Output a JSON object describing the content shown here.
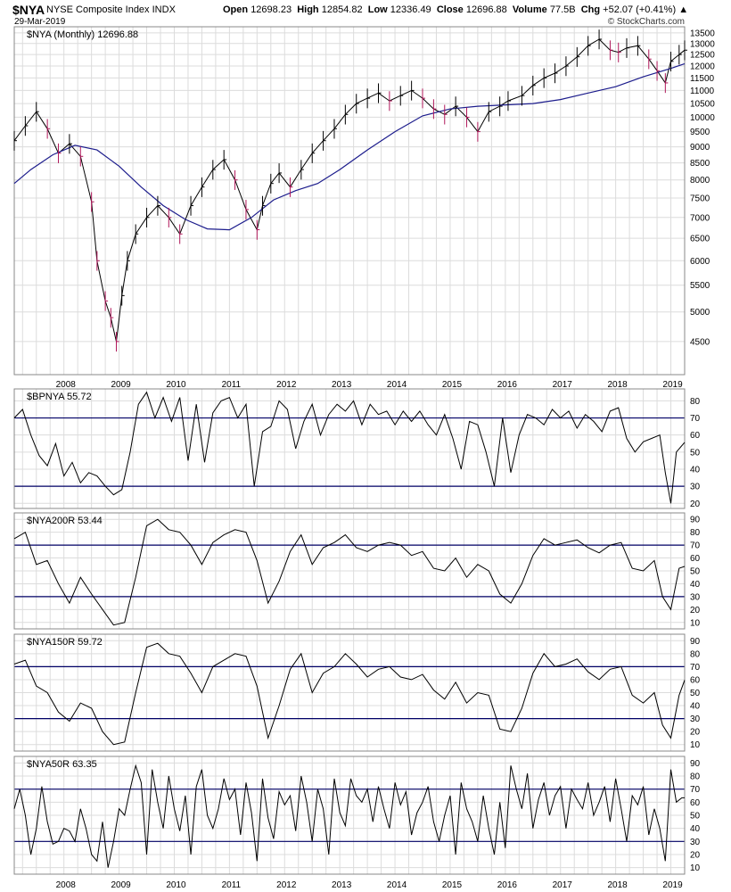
{
  "header": {
    "symbol": "$NYA",
    "name": "NYSE Composite Index",
    "exchange": "INDX",
    "date": "29-Mar-2019",
    "open_label": "Open",
    "open": "12698.23",
    "high_label": "High",
    "high": "12854.82",
    "low_label": "Low",
    "low": "12336.49",
    "close_label": "Close",
    "close": "12696.88",
    "volume_label": "Volume",
    "volume": "77.5B",
    "chg_label": "Chg",
    "chg": "+52.07 (+0.41%)",
    "brand": "© StockCharts.com"
  },
  "colors": {
    "price": "#000000",
    "down_bar": "#b0175a",
    "ma": "#1c1c8c",
    "ref_line": "#000066",
    "grid": "#dcdcdc"
  },
  "chart_data": [
    {
      "type": "line",
      "legend": "$NYA (Monthly) 12696.88",
      "scale": "log",
      "ylim": [
        4000,
        13800
      ],
      "x_range": [
        2007.1,
        2019.25
      ],
      "yticks": [
        4500,
        5000,
        5500,
        6000,
        6500,
        7000,
        7500,
        8000,
        8500,
        9000,
        9500,
        10000,
        10500,
        11000,
        11500,
        12000,
        12500,
        13000,
        13500
      ],
      "xticks": [
        2008,
        2009,
        2010,
        2011,
        2012,
        2013,
        2014,
        2015,
        2016,
        2017,
        2018,
        2019
      ],
      "series": [
        {
          "name": "price",
          "x": [
            2007.1,
            2007.3,
            2007.5,
            2007.7,
            2007.9,
            2008.1,
            2008.3,
            2008.5,
            2008.6,
            2008.75,
            2008.85,
            2008.95,
            2009.05,
            2009.15,
            2009.3,
            2009.5,
            2009.7,
            2009.9,
            2010.1,
            2010.3,
            2010.5,
            2010.7,
            2010.9,
            2011.1,
            2011.3,
            2011.5,
            2011.6,
            2011.75,
            2011.9,
            2012.1,
            2012.3,
            2012.5,
            2012.7,
            2012.9,
            2013.1,
            2013.3,
            2013.5,
            2013.7,
            2013.9,
            2014.1,
            2014.3,
            2014.5,
            2014.7,
            2014.9,
            2015.1,
            2015.3,
            2015.5,
            2015.7,
            2015.9,
            2016.05,
            2016.3,
            2016.5,
            2016.7,
            2016.9,
            2017.1,
            2017.3,
            2017.5,
            2017.7,
            2017.9,
            2018.05,
            2018.2,
            2018.4,
            2018.6,
            2018.75,
            2018.9,
            2019.0,
            2019.15,
            2019.25
          ],
          "values": [
            9200,
            9700,
            10200,
            9600,
            8800,
            9100,
            8700,
            7400,
            6000,
            5200,
            4900,
            4500,
            5300,
            6000,
            6600,
            7000,
            7300,
            7000,
            6600,
            7300,
            7800,
            8300,
            8600,
            8000,
            7200,
            6700,
            7300,
            7900,
            8200,
            7800,
            8300,
            8800,
            9200,
            9600,
            10100,
            10500,
            10700,
            10900,
            10600,
            10800,
            11000,
            10700,
            10300,
            10100,
            10400,
            10000,
            9500,
            10200,
            10400,
            10600,
            10800,
            11200,
            11500,
            11700,
            12000,
            12400,
            12900,
            13200,
            12700,
            12600,
            12800,
            12900,
            12300,
            11800,
            11300,
            12200,
            12500,
            12697
          ]
        },
        {
          "name": "MA",
          "x": [
            2007.1,
            2007.4,
            2007.8,
            2008.2,
            2008.6,
            2009.0,
            2009.4,
            2009.8,
            2010.2,
            2010.6,
            2011.0,
            2011.4,
            2011.8,
            2012.2,
            2012.6,
            2013.0,
            2013.5,
            2014.0,
            2014.5,
            2015.0,
            2015.5,
            2016.0,
            2016.5,
            2017.0,
            2017.5,
            2018.0,
            2018.5,
            2019.0,
            2019.25
          ],
          "values": [
            7900,
            8300,
            8750,
            9050,
            8900,
            8400,
            7800,
            7300,
            6950,
            6720,
            6700,
            7000,
            7450,
            7700,
            7900,
            8300,
            8900,
            9500,
            10050,
            10300,
            10400,
            10450,
            10500,
            10650,
            10900,
            11150,
            11550,
            11900,
            12100
          ]
        }
      ]
    },
    {
      "type": "line",
      "legend": "$BPNYA 55.72",
      "ylim": [
        17,
        87
      ],
      "yticks": [
        20,
        30,
        40,
        50,
        60,
        70,
        80
      ],
      "reference_lines": [
        70,
        30
      ],
      "series": [
        {
          "name": "$BPNYA",
          "x": [
            2007.1,
            2007.25,
            2007.4,
            2007.55,
            2007.7,
            2007.85,
            2008.0,
            2008.15,
            2008.3,
            2008.45,
            2008.6,
            2008.75,
            2008.9,
            2009.05,
            2009.2,
            2009.35,
            2009.5,
            2009.65,
            2009.8,
            2009.95,
            2010.1,
            2010.25,
            2010.4,
            2010.55,
            2010.7,
            2010.85,
            2011.0,
            2011.15,
            2011.3,
            2011.45,
            2011.6,
            2011.75,
            2011.9,
            2012.05,
            2012.2,
            2012.35,
            2012.5,
            2012.65,
            2012.8,
            2012.95,
            2013.1,
            2013.25,
            2013.4,
            2013.55,
            2013.7,
            2013.85,
            2014.0,
            2014.15,
            2014.3,
            2014.45,
            2014.6,
            2014.75,
            2014.9,
            2015.05,
            2015.2,
            2015.35,
            2015.5,
            2015.65,
            2015.8,
            2015.95,
            2016.1,
            2016.25,
            2016.4,
            2016.55,
            2016.7,
            2016.85,
            2017.0,
            2017.15,
            2017.3,
            2017.45,
            2017.6,
            2017.75,
            2017.9,
            2018.05,
            2018.2,
            2018.35,
            2018.5,
            2018.65,
            2018.8,
            2018.9,
            2019.0,
            2019.1,
            2019.25
          ],
          "values": [
            70,
            75,
            60,
            48,
            42,
            55,
            36,
            44,
            32,
            38,
            36,
            30,
            25,
            28,
            50,
            78,
            85,
            70,
            82,
            68,
            82,
            45,
            78,
            44,
            73,
            80,
            82,
            70,
            78,
            30,
            62,
            65,
            80,
            75,
            52,
            68,
            78,
            60,
            72,
            78,
            74,
            80,
            66,
            78,
            72,
            74,
            66,
            74,
            68,
            74,
            66,
            60,
            72,
            58,
            40,
            68,
            66,
            50,
            30,
            70,
            38,
            60,
            72,
            70,
            66,
            75,
            70,
            74,
            64,
            72,
            68,
            62,
            74,
            76,
            58,
            50,
            56,
            58,
            60,
            38,
            20,
            50,
            55.72
          ]
        }
      ]
    },
    {
      "type": "line",
      "legend": "$NYA200R 53.44",
      "ylim": [
        5,
        95
      ],
      "yticks": [
        10,
        20,
        30,
        40,
        50,
        60,
        70,
        80,
        90
      ],
      "reference_lines": [
        70,
        30
      ],
      "series": [
        {
          "name": "$NYA200R",
          "x": [
            2007.1,
            2007.3,
            2007.5,
            2007.7,
            2007.9,
            2008.1,
            2008.3,
            2008.5,
            2008.7,
            2008.9,
            2009.1,
            2009.3,
            2009.5,
            2009.7,
            2009.9,
            2010.1,
            2010.3,
            2010.5,
            2010.7,
            2010.9,
            2011.1,
            2011.3,
            2011.5,
            2011.7,
            2011.9,
            2012.1,
            2012.3,
            2012.5,
            2012.7,
            2012.9,
            2013.1,
            2013.3,
            2013.5,
            2013.7,
            2013.9,
            2014.1,
            2014.3,
            2014.5,
            2014.7,
            2014.9,
            2015.1,
            2015.3,
            2015.5,
            2015.7,
            2015.9,
            2016.1,
            2016.3,
            2016.5,
            2016.7,
            2016.9,
            2017.1,
            2017.3,
            2017.5,
            2017.7,
            2017.9,
            2018.1,
            2018.3,
            2018.5,
            2018.7,
            2018.85,
            2019.0,
            2019.15,
            2019.25
          ],
          "values": [
            75,
            80,
            55,
            58,
            40,
            25,
            45,
            32,
            20,
            8,
            10,
            45,
            85,
            90,
            82,
            80,
            70,
            55,
            72,
            78,
            82,
            80,
            58,
            25,
            42,
            65,
            78,
            55,
            68,
            72,
            78,
            68,
            65,
            70,
            72,
            70,
            62,
            65,
            52,
            50,
            60,
            45,
            55,
            50,
            32,
            25,
            40,
            62,
            75,
            70,
            72,
            74,
            68,
            64,
            70,
            72,
            52,
            50,
            58,
            30,
            20,
            52,
            53.44
          ]
        }
      ]
    },
    {
      "type": "line",
      "legend": "$NYA150R 59.72",
      "ylim": [
        5,
        95
      ],
      "yticks": [
        10,
        20,
        30,
        40,
        50,
        60,
        70,
        80,
        90
      ],
      "reference_lines": [
        70,
        30
      ],
      "series": [
        {
          "name": "$NYA150R",
          "x": [
            2007.1,
            2007.3,
            2007.5,
            2007.7,
            2007.9,
            2008.1,
            2008.3,
            2008.5,
            2008.7,
            2008.9,
            2009.1,
            2009.3,
            2009.5,
            2009.7,
            2009.9,
            2010.1,
            2010.3,
            2010.5,
            2010.7,
            2010.9,
            2011.1,
            2011.3,
            2011.5,
            2011.7,
            2011.9,
            2012.1,
            2012.3,
            2012.5,
            2012.7,
            2012.9,
            2013.1,
            2013.3,
            2013.5,
            2013.7,
            2013.9,
            2014.1,
            2014.3,
            2014.5,
            2014.7,
            2014.9,
            2015.1,
            2015.3,
            2015.5,
            2015.7,
            2015.9,
            2016.1,
            2016.3,
            2016.5,
            2016.7,
            2016.9,
            2017.1,
            2017.3,
            2017.5,
            2017.7,
            2017.9,
            2018.1,
            2018.3,
            2018.5,
            2018.7,
            2018.85,
            2019.0,
            2019.15,
            2019.25
          ],
          "values": [
            72,
            75,
            55,
            50,
            35,
            28,
            42,
            38,
            20,
            10,
            12,
            50,
            85,
            88,
            80,
            78,
            65,
            50,
            70,
            75,
            80,
            78,
            55,
            15,
            40,
            68,
            80,
            50,
            65,
            70,
            80,
            72,
            62,
            68,
            70,
            62,
            60,
            64,
            52,
            45,
            58,
            42,
            50,
            48,
            22,
            20,
            38,
            65,
            80,
            70,
            72,
            76,
            66,
            60,
            68,
            70,
            48,
            42,
            50,
            25,
            15,
            48,
            59.72
          ]
        }
      ]
    },
    {
      "type": "line",
      "legend": "$NYA50R 63.35",
      "ylim": [
        5,
        95
      ],
      "yticks": [
        10,
        20,
        30,
        40,
        50,
        60,
        70,
        80,
        90
      ],
      "reference_lines": [
        70,
        30
      ],
      "series": [
        {
          "name": "$NYA50R",
          "x": [
            2007.1,
            2007.2,
            2007.3,
            2007.4,
            2007.5,
            2007.6,
            2007.7,
            2007.8,
            2007.9,
            2008.0,
            2008.1,
            2008.2,
            2008.3,
            2008.4,
            2008.5,
            2008.6,
            2008.7,
            2008.8,
            2008.9,
            2009.0,
            2009.1,
            2009.2,
            2009.3,
            2009.4,
            2009.5,
            2009.6,
            2009.7,
            2009.8,
            2009.9,
            2010.0,
            2010.1,
            2010.2,
            2010.3,
            2010.4,
            2010.5,
            2010.6,
            2010.7,
            2010.8,
            2010.9,
            2011.0,
            2011.1,
            2011.2,
            2011.3,
            2011.4,
            2011.5,
            2011.6,
            2011.7,
            2011.8,
            2011.9,
            2012.0,
            2012.1,
            2012.2,
            2012.3,
            2012.4,
            2012.5,
            2012.6,
            2012.7,
            2012.8,
            2012.9,
            2013.0,
            2013.1,
            2013.2,
            2013.3,
            2013.4,
            2013.5,
            2013.6,
            2013.7,
            2013.8,
            2013.9,
            2014.0,
            2014.1,
            2014.2,
            2014.3,
            2014.4,
            2014.5,
            2014.6,
            2014.7,
            2014.8,
            2014.9,
            2015.0,
            2015.1,
            2015.2,
            2015.3,
            2015.4,
            2015.5,
            2015.6,
            2015.7,
            2015.8,
            2015.9,
            2016.0,
            2016.1,
            2016.2,
            2016.3,
            2016.4,
            2016.5,
            2016.6,
            2016.7,
            2016.8,
            2016.9,
            2017.0,
            2017.1,
            2017.2,
            2017.3,
            2017.4,
            2017.5,
            2017.6,
            2017.7,
            2017.8,
            2017.9,
            2018.0,
            2018.1,
            2018.2,
            2018.3,
            2018.4,
            2018.5,
            2018.6,
            2018.7,
            2018.8,
            2018.9,
            2019.0,
            2019.1,
            2019.2,
            2019.25
          ],
          "values": [
            55,
            70,
            50,
            20,
            40,
            72,
            45,
            28,
            30,
            40,
            38,
            30,
            55,
            40,
            20,
            15,
            45,
            10,
            30,
            55,
            50,
            70,
            88,
            75,
            20,
            85,
            60,
            40,
            80,
            55,
            38,
            65,
            20,
            72,
            85,
            50,
            40,
            55,
            78,
            62,
            70,
            35,
            75,
            52,
            15,
            78,
            48,
            32,
            68,
            58,
            65,
            38,
            80,
            60,
            30,
            70,
            55,
            20,
            78,
            52,
            42,
            78,
            65,
            60,
            70,
            45,
            72,
            55,
            40,
            75,
            58,
            68,
            35,
            52,
            60,
            72,
            45,
            30,
            50,
            65,
            20,
            75,
            55,
            45,
            30,
            65,
            40,
            20,
            60,
            25,
            88,
            70,
            55,
            82,
            40,
            62,
            75,
            50,
            65,
            72,
            40,
            70,
            62,
            55,
            75,
            50,
            60,
            72,
            45,
            78,
            55,
            30,
            65,
            58,
            72,
            35,
            55,
            40,
            15,
            85,
            60,
            63.35,
            63.35
          ]
        }
      ]
    }
  ]
}
